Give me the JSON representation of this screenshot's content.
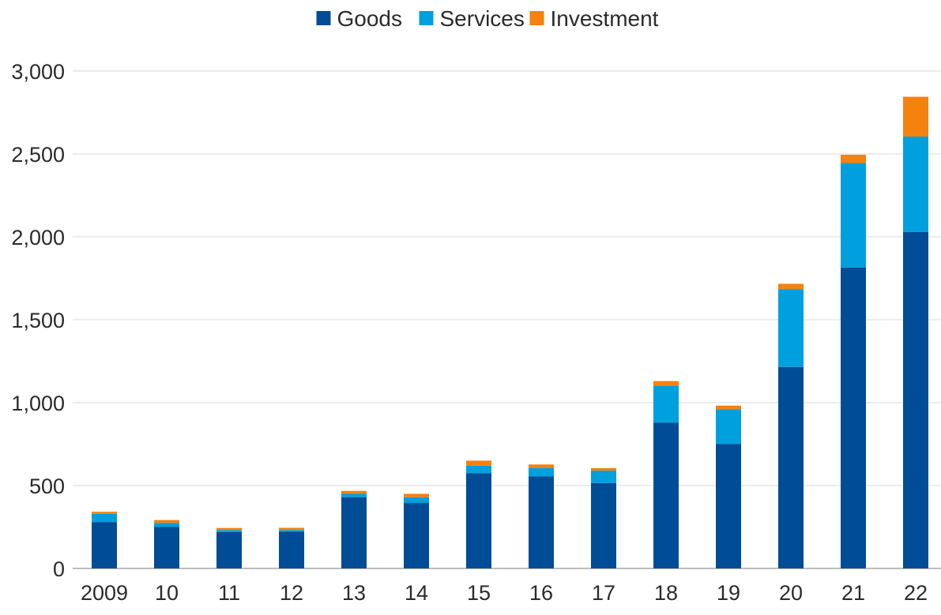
{
  "chart_data": {
    "type": "bar",
    "stacked": true,
    "categories": [
      "2009",
      "10",
      "11",
      "12",
      "13",
      "14",
      "15",
      "16",
      "17",
      "18",
      "19",
      "20",
      "21",
      "22"
    ],
    "series": [
      {
        "name": "Goods",
        "color": "#004c97",
        "values": [
          280,
          250,
          220,
          222,
          430,
          395,
          575,
          555,
          515,
          880,
          750,
          1215,
          1815,
          2030
        ]
      },
      {
        "name": "Services",
        "color": "#009fde",
        "values": [
          50,
          25,
          12,
          10,
          20,
          35,
          45,
          50,
          75,
          220,
          210,
          470,
          630,
          575
        ]
      },
      {
        "name": "Investment",
        "color": "#f5810f",
        "values": [
          12,
          17,
          12,
          13,
          18,
          20,
          30,
          22,
          15,
          30,
          22,
          32,
          50,
          240
        ]
      }
    ],
    "title": "",
    "xlabel": "",
    "ylabel": "",
    "ylim": [
      0,
      3000
    ],
    "yticks": [
      0,
      500,
      1000,
      1500,
      2000,
      2500,
      3000
    ],
    "ytick_labels": [
      "0",
      "500",
      "1,000",
      "1,500",
      "2,000",
      "2,500",
      "3,000"
    ],
    "grid": true,
    "legend_position": "top-center"
  }
}
